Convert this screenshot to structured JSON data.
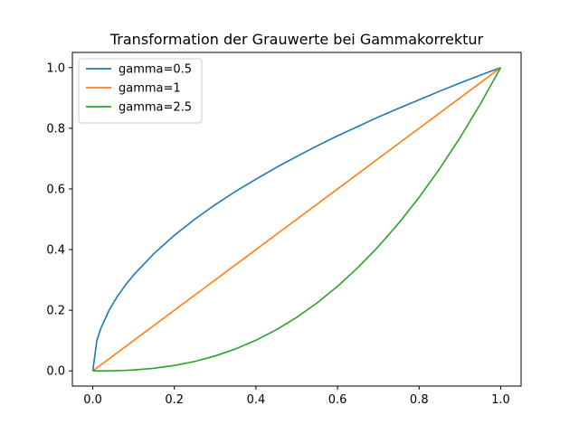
{
  "chart_data": {
    "type": "line",
    "title": "Transformation der Grauwerte bei Gammakorrektur",
    "xlabel": "",
    "ylabel": "",
    "xlim": [
      -0.05,
      1.05
    ],
    "ylim": [
      -0.05,
      1.05
    ],
    "x_ticks": [
      0.0,
      0.2,
      0.4,
      0.6,
      0.8,
      1.0
    ],
    "x_tick_labels": [
      "0.0",
      "0.2",
      "0.4",
      "0.6",
      "0.8",
      "1.0"
    ],
    "y_ticks": [
      0.0,
      0.2,
      0.4,
      0.6,
      0.8,
      1.0
    ],
    "y_tick_labels": [
      "0.0",
      "0.2",
      "0.4",
      "0.6",
      "0.8",
      "1.0"
    ],
    "grid": false,
    "legend_position": "top-left",
    "x": [
      0.0,
      0.01,
      0.02,
      0.04,
      0.06,
      0.08,
      0.1,
      0.15,
      0.2,
      0.25,
      0.3,
      0.35,
      0.4,
      0.45,
      0.5,
      0.55,
      0.6,
      0.65,
      0.7,
      0.75,
      0.8,
      0.85,
      0.9,
      0.95,
      1.0
    ],
    "series": [
      {
        "name": "gamma=0.5",
        "color": "#1f77b4",
        "values": [
          0.0,
          0.1,
          0.141,
          0.2,
          0.245,
          0.283,
          0.316,
          0.387,
          0.447,
          0.5,
          0.548,
          0.592,
          0.632,
          0.671,
          0.707,
          0.742,
          0.775,
          0.806,
          0.837,
          0.866,
          0.894,
          0.922,
          0.949,
          0.975,
          1.0
        ]
      },
      {
        "name": "gamma=1",
        "color": "#ff7f0e",
        "values": [
          0.0,
          0.01,
          0.02,
          0.04,
          0.06,
          0.08,
          0.1,
          0.15,
          0.2,
          0.25,
          0.3,
          0.35,
          0.4,
          0.45,
          0.5,
          0.55,
          0.6,
          0.65,
          0.7,
          0.75,
          0.8,
          0.85,
          0.9,
          0.95,
          1.0
        ]
      },
      {
        "name": "gamma=2.5",
        "color": "#2ca02c",
        "values": [
          0.0,
          0.0,
          0.0001,
          0.0003,
          0.0009,
          0.0018,
          0.0032,
          0.0087,
          0.0179,
          0.0313,
          0.0493,
          0.0725,
          0.1012,
          0.1358,
          0.1768,
          0.2243,
          0.2789,
          0.3406,
          0.41,
          0.4871,
          0.5724,
          0.6661,
          0.7684,
          0.8797,
          1.0
        ]
      }
    ]
  }
}
